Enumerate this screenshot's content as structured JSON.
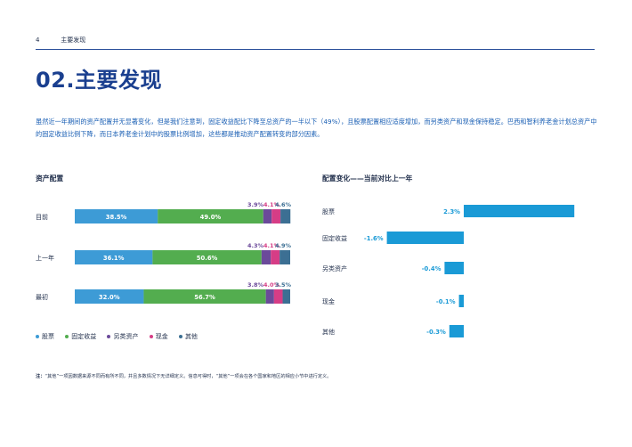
{
  "header": {
    "page_number": "4",
    "section": "主要发现"
  },
  "title": "02.主要发现",
  "intro": "虽然近一年期间的资产配置并无显著变化，但是我们注意到，固定收益配比下降至总资产的一半以下（49%），且股票配置相应适度增加，而另类资产和现金保持稳定。巴西和智利养老金计划总资产中的固定收益比例下降，而日本养老金计划中的股票比例增加，这些都是推动资产配置转变的部分因素。",
  "left_chart_title": "资产配置",
  "right_chart_title": "配置变化——当前对比上一年",
  "colors": {
    "equity": "#3d9bd6",
    "fixed_income": "#53ad4f",
    "alternative": "#6b4a9a",
    "cash": "#d63d86",
    "other": "#3c6f93",
    "change_bar": "#1a9ad6"
  },
  "legend": [
    {
      "label": "股票",
      "color": "#3d9bd6"
    },
    {
      "label": "固定收益",
      "color": "#53ad4f"
    },
    {
      "label": "另类资产",
      "color": "#6b4a9a"
    },
    {
      "label": "现金",
      "color": "#d63d86"
    },
    {
      "label": "其他",
      "color": "#3c6f93"
    }
  ],
  "chart_data": [
    {
      "type": "bar",
      "stacked": true,
      "orientation": "horizontal",
      "title": "资产配置",
      "categories": [
        "目前",
        "上一年",
        "最初"
      ],
      "series": [
        {
          "name": "股票",
          "values": [
            38.5,
            36.1,
            32.0
          ],
          "labels": [
            "38.5%",
            "36.1%",
            "32.0%"
          ]
        },
        {
          "name": "固定收益",
          "values": [
            49.0,
            50.6,
            56.7
          ],
          "labels": [
            "49.0%",
            "50.6%",
            "56.7%"
          ]
        },
        {
          "name": "另类资产",
          "values": [
            3.9,
            4.3,
            3.8
          ],
          "labels": [
            "3.9%",
            "4.3%",
            "3.8%"
          ]
        },
        {
          "name": "现金",
          "values": [
            4.1,
            4.1,
            4.0
          ],
          "labels": [
            "4.1%",
            "4.1%",
            "4.0%"
          ]
        },
        {
          "name": "其他",
          "values": [
            4.6,
            4.9,
            3.5
          ],
          "labels": [
            "4.6%",
            "4.9%",
            "3.5%"
          ]
        }
      ]
    },
    {
      "type": "bar",
      "orientation": "horizontal",
      "title": "配置变化——当前对比上一年",
      "categories": [
        "股票",
        "固定收益",
        "另类资产",
        "现金",
        "其他"
      ],
      "values": [
        2.3,
        -1.6,
        -0.4,
        -0.1,
        -0.3
      ],
      "labels": [
        "2.3%",
        "-1.6%",
        "-0.4%",
        "-0.1%",
        "-0.3%"
      ]
    }
  ],
  "note": {
    "prefix": "注：",
    "text": "“其他”一项因数据来源不同而有所不同，并且多数情况下无详细定义。信息可得时，“其他”一项会在各个国家和地区的相应小节中进行定义。"
  }
}
